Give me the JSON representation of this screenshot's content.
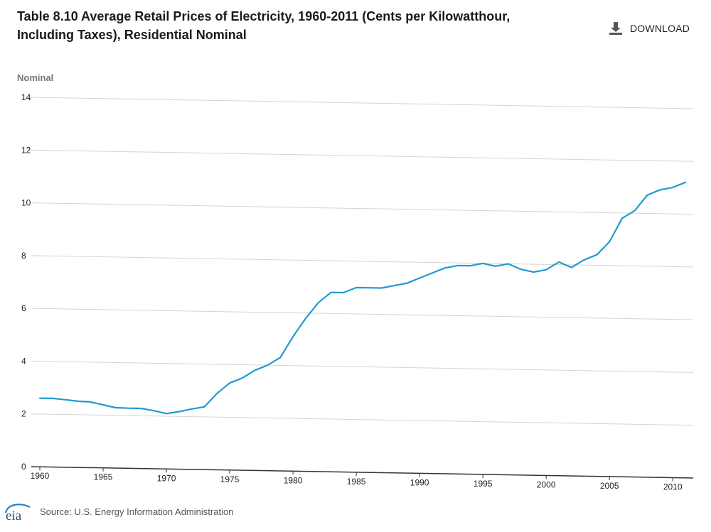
{
  "header": {
    "title_line1_a": "Table 8.10 Average Retail Prices of Electricity, 1960-2011 (Cents per Kilowatthour,",
    "title_line2": "Including Taxes), Residential Nominal"
  },
  "toolbar": {
    "download_label": "DOWNLOAD",
    "download_icon": "download-icon"
  },
  "axis": {
    "y_series_label": "Nominal"
  },
  "footer": {
    "logo_text": "eia",
    "source": "Source: U.S. Energy Information Administration"
  },
  "colors": {
    "line": "#1f9bd1",
    "grid": "#d4d4d4",
    "axis": "#333333"
  },
  "chart_data": {
    "type": "line",
    "title": "Table 8.10 Average Retail Prices of Electricity, 1960-2011 (Cents per Kilowatthour, Including Taxes), Residential Nominal",
    "xlabel": "",
    "ylabel": "Nominal",
    "xlim": [
      1960,
      2011
    ],
    "ylim": [
      0,
      14
    ],
    "grid": true,
    "legend": "none",
    "x_ticks": [
      1960,
      1965,
      1970,
      1975,
      1980,
      1985,
      1990,
      1995,
      2000,
      2005,
      2010
    ],
    "y_ticks": [
      0,
      2,
      4,
      6,
      8,
      10,
      12,
      14
    ],
    "series": [
      {
        "x": [
          1960,
          1961,
          1962,
          1963,
          1964,
          1965,
          1966,
          1967,
          1968,
          1969,
          1970,
          1971,
          1972,
          1973,
          1974,
          1975,
          1976,
          1977,
          1978,
          1979,
          1980,
          1981,
          1982,
          1983,
          1984,
          1985,
          1986,
          1987,
          1988,
          1989,
          1990,
          1991,
          1992,
          1993,
          1994,
          1995,
          1996,
          1997,
          1998,
          1999,
          2000,
          2001,
          2002,
          2003,
          2004,
          2005,
          2006,
          2007,
          2008,
          2009,
          2010,
          2011
        ],
        "values": [
          2.6,
          2.6,
          2.56,
          2.51,
          2.49,
          2.39,
          2.29,
          2.28,
          2.28,
          2.2,
          2.1,
          2.18,
          2.29,
          2.38,
          2.9,
          3.3,
          3.5,
          3.8,
          4.0,
          4.3,
          5.1,
          5.8,
          6.4,
          6.8,
          6.8,
          7.0,
          7.0,
          7.0,
          7.1,
          7.2,
          7.4,
          7.6,
          7.8,
          7.9,
          7.9,
          8.0,
          7.9,
          8.0,
          7.8,
          7.7,
          7.8,
          8.1,
          7.9,
          8.2,
          8.4,
          8.9,
          9.8,
          10.1,
          10.7,
          10.9,
          11.0,
          11.2
        ]
      }
    ]
  }
}
